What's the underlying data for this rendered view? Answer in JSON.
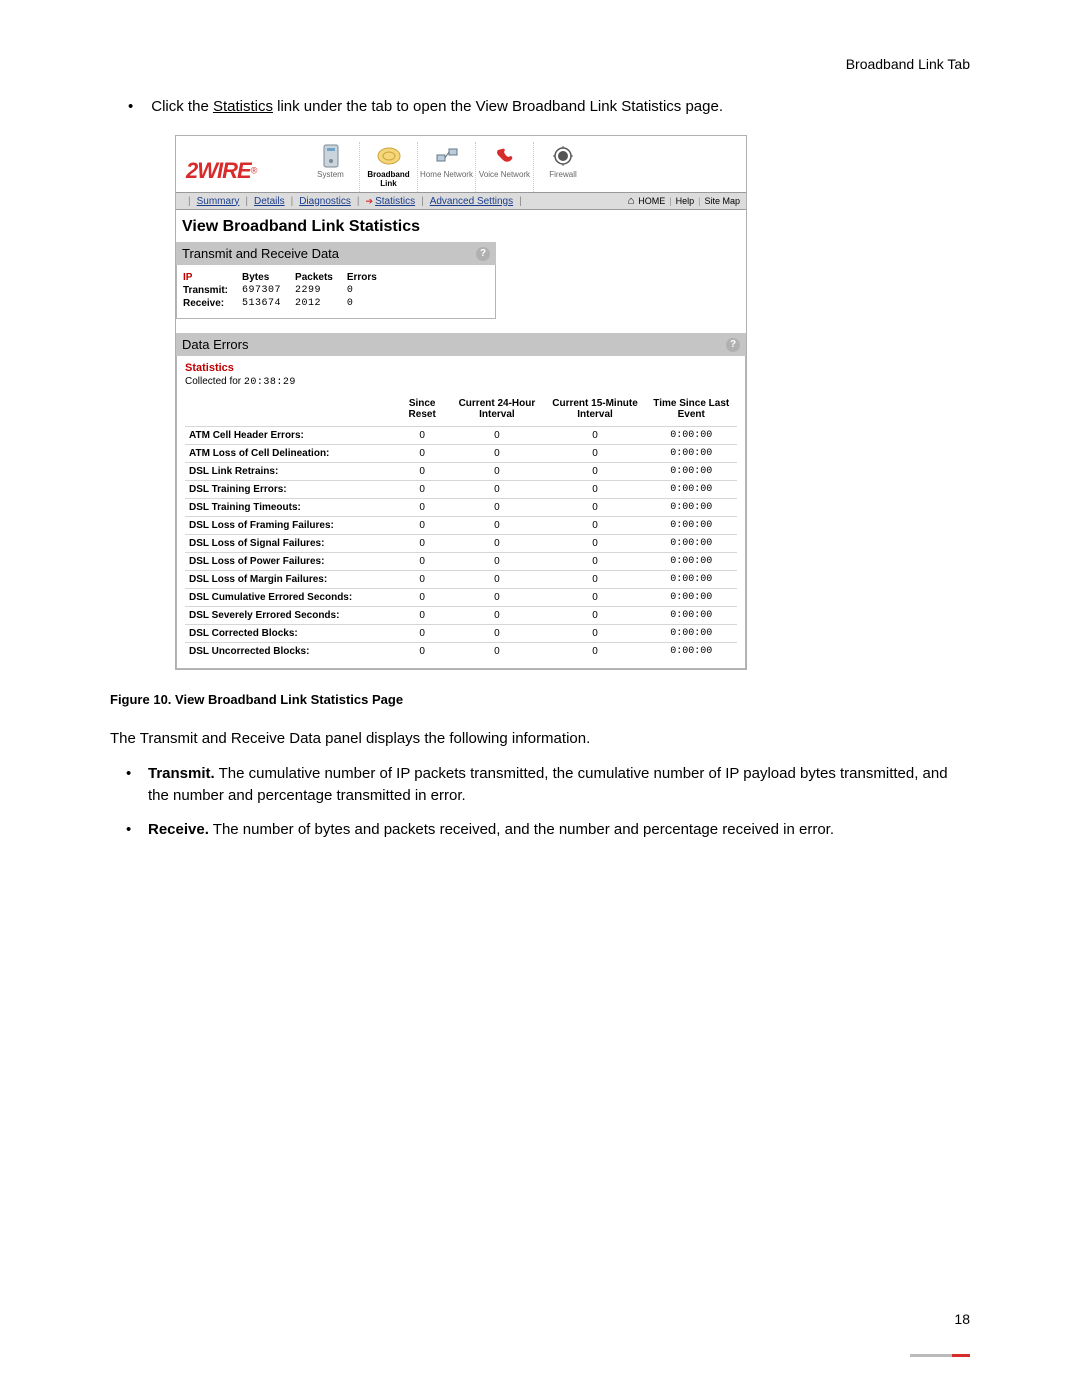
{
  "header_right": "Broadband Link Tab",
  "intro_sentence_pre": "Click the ",
  "intro_sentence_link": "Statistics",
  "intro_sentence_post": " link under the tab to open the View Broadband Link Statistics page.",
  "brand": "2WIRE",
  "nav": [
    {
      "label": "System"
    },
    {
      "label": "Broadband Link"
    },
    {
      "label": "Home Network"
    },
    {
      "label": "Voice Network"
    },
    {
      "label": "Firewall"
    }
  ],
  "subnav": {
    "items": [
      "Summary",
      "Details",
      "Diagnostics",
      "Statistics",
      "Advanced Settings"
    ],
    "active_index": 3,
    "right": [
      "HOME",
      "Help",
      "Site Map"
    ]
  },
  "main_title": "View Broadband Link Statistics",
  "tr_panel": {
    "title": "Transmit and Receive Data",
    "headers": [
      "IP",
      "Bytes",
      "Packets",
      "Errors"
    ],
    "rows": [
      {
        "label": "Transmit:",
        "bytes": "697307",
        "packets": "2299",
        "errors": "0"
      },
      {
        "label": "Receive:",
        "bytes": "513674",
        "packets": "2012",
        "errors": "0"
      }
    ]
  },
  "de_panel": {
    "title": "Data Errors",
    "stats_label": "Statistics",
    "collected_prefix": "Collected for ",
    "collected_time": "20:38:29",
    "columns": [
      "",
      "Since Reset",
      "Current 24-Hour Interval",
      "Current 15-Minute Interval",
      "Time Since Last Event"
    ],
    "rows": [
      {
        "label": "ATM Cell Header Errors:",
        "v": [
          "0",
          "0",
          "0",
          "0:00:00"
        ]
      },
      {
        "label": "ATM Loss of Cell Delineation:",
        "v": [
          "0",
          "0",
          "0",
          "0:00:00"
        ]
      },
      {
        "label": "DSL Link Retrains:",
        "v": [
          "0",
          "0",
          "0",
          "0:00:00"
        ]
      },
      {
        "label": "DSL Training Errors:",
        "v": [
          "0",
          "0",
          "0",
          "0:00:00"
        ]
      },
      {
        "label": "DSL Training Timeouts:",
        "v": [
          "0",
          "0",
          "0",
          "0:00:00"
        ]
      },
      {
        "label": "DSL Loss of Framing Failures:",
        "v": [
          "0",
          "0",
          "0",
          "0:00:00"
        ]
      },
      {
        "label": "DSL Loss of Signal Failures:",
        "v": [
          "0",
          "0",
          "0",
          "0:00:00"
        ]
      },
      {
        "label": "DSL Loss of Power Failures:",
        "v": [
          "0",
          "0",
          "0",
          "0:00:00"
        ]
      },
      {
        "label": "DSL Loss of Margin Failures:",
        "v": [
          "0",
          "0",
          "0",
          "0:00:00"
        ]
      },
      {
        "label": "DSL Cumulative Errored Seconds:",
        "v": [
          "0",
          "0",
          "0",
          "0:00:00"
        ]
      },
      {
        "label": "DSL Severely Errored Seconds:",
        "v": [
          "0",
          "0",
          "0",
          "0:00:00"
        ]
      },
      {
        "label": "DSL Corrected Blocks:",
        "v": [
          "0",
          "0",
          "0",
          "0:00:00"
        ]
      },
      {
        "label": "DSL Uncorrected Blocks:",
        "v": [
          "0",
          "0",
          "0",
          "0:00:00"
        ]
      }
    ]
  },
  "fig_caption": "Figure 10. View Broadband Link Statistics Page",
  "body_text": "The Transmit and Receive Data panel displays the following information.",
  "bullets": [
    {
      "b": "Transmit.",
      "t": " The cumulative number of IP packets transmitted, the cumulative number of IP payload bytes transmitted, and the number and percentage transmitted in error."
    },
    {
      "b": "Receive.",
      "t": " The number of bytes and packets received, and the number and percentage received in error."
    }
  ],
  "page_num": "18",
  "colors": {
    "accent_red": "#d82c2c",
    "panel_hdr": "#c5c5c5",
    "link_blue": "#1a3c8c"
  }
}
